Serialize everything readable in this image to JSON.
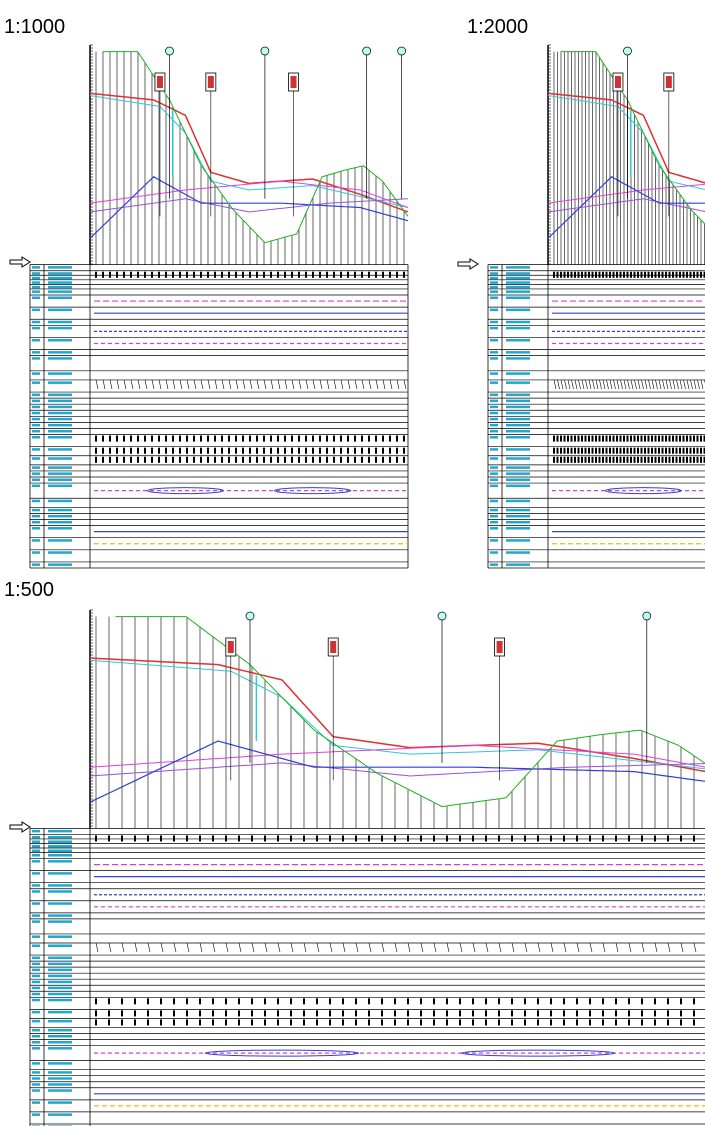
{
  "panels": [
    {
      "label": "1:1000"
    },
    {
      "label": "1:2000"
    },
    {
      "label": "1:500"
    }
  ]
}
